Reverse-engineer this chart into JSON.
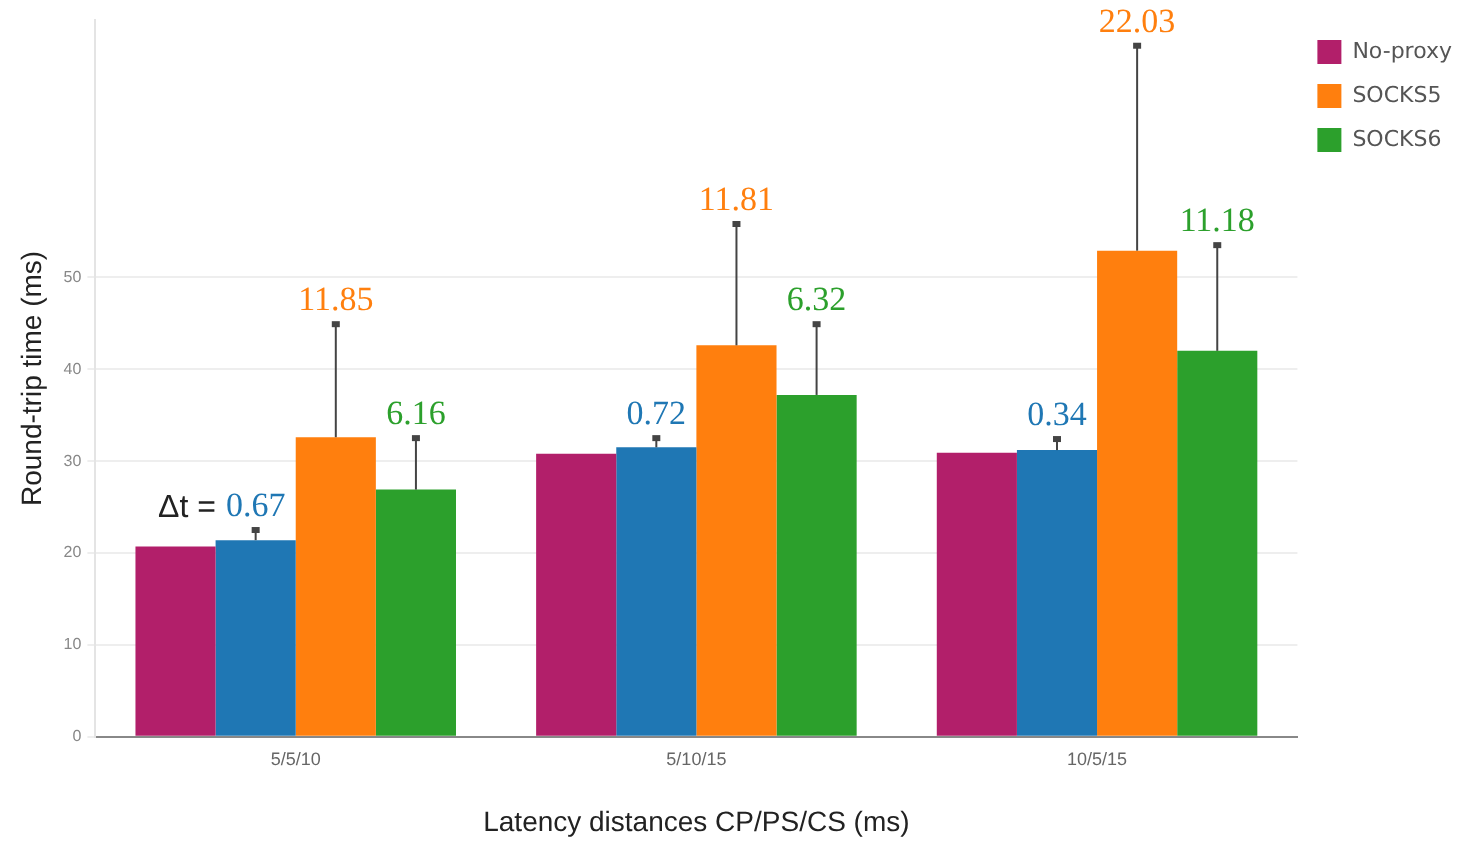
{
  "chart_data": {
    "type": "bar",
    "xlabel": "Latency distances CP/PS/CS (ms)",
    "ylabel": "Round-trip time (ms)",
    "categories": [
      "5/5/10",
      "5/10/15",
      "10/5/15"
    ],
    "series": [
      {
        "name": "No-proxy",
        "color": "#b21f6a",
        "values": [
          20.7,
          30.8,
          30.9
        ]
      },
      {
        "color": "#1f77b4",
        "values": [
          21.4,
          31.5,
          31.2
        ],
        "errors": [
          [
            21.4,
            22.5
          ],
          [
            31.5,
            32.5
          ],
          [
            31.2,
            32.4
          ]
        ]
      },
      {
        "name": "SOCKS5",
        "color": "#ff7f0e",
        "values": [
          32.6,
          42.6,
          52.9
        ],
        "errors": [
          [
            32.6,
            44.9
          ],
          [
            42.6,
            55.8
          ],
          [
            52.9,
            75.2
          ]
        ]
      },
      {
        "name": "SOCKS6",
        "color": "#2ca02c",
        "values": [
          26.9,
          37.2,
          42.0
        ],
        "errors": [
          [
            26.9,
            32.5
          ],
          [
            37.2,
            44.9
          ],
          [
            42.0,
            53.5
          ]
        ]
      }
    ],
    "annotations": [
      "Δt =",
      "11.85",
      "11.81",
      "22.03",
      "6.32",
      {
        "text": "0.67",
        "x": "5/5/10",
        "y": 22.5
      },
      {
        "text": "0.72",
        "x": "5/10/15",
        "y": 32.5
      },
      {
        "text": "0.34",
        "x": "10/5/15",
        "y": 32.4
      },
      {
        "text": "6.16",
        "x": "5/5/10",
        "y": 32.5
      },
      {
        "text": "11.18",
        "x": "10/5/15",
        "y": 53.5
      }
    ],
    "ylim": [
      0,
      78
    ],
    "yticks": [
      0,
      10,
      20,
      30,
      40,
      50
    ],
    "grid": "y",
    "legend": "top right"
  }
}
